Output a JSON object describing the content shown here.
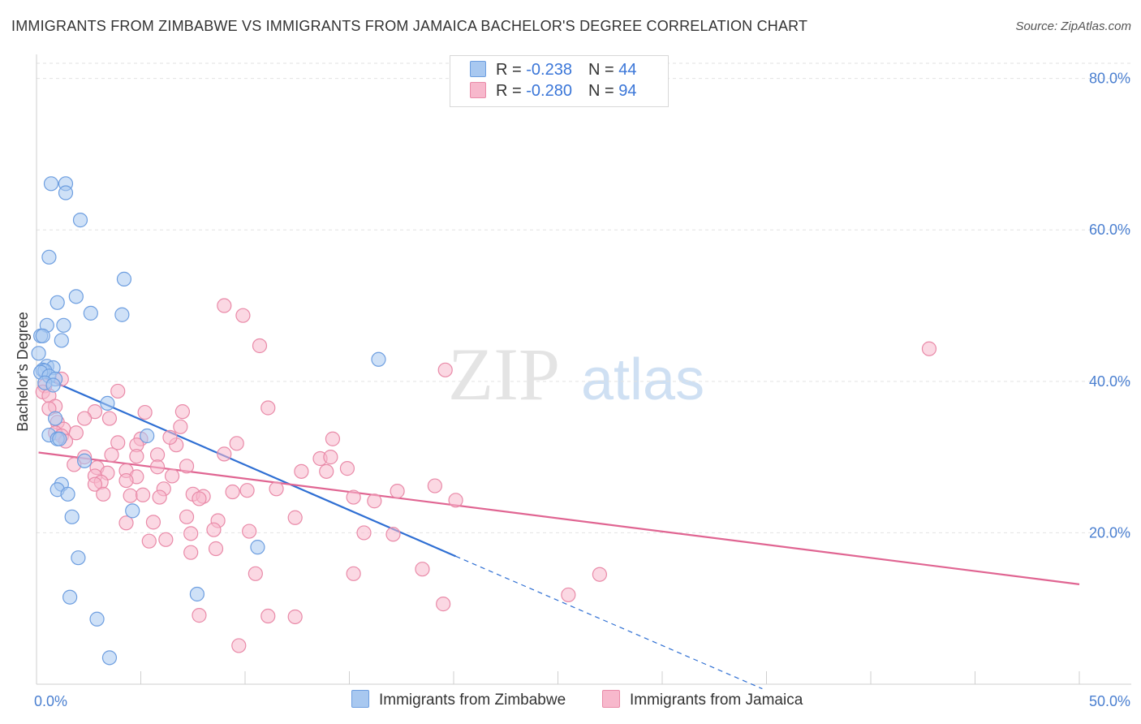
{
  "title": "IMMIGRANTS FROM ZIMBABWE VS IMMIGRANTS FROM JAMAICA BACHELOR'S DEGREE CORRELATION CHART",
  "source": "Source: ZipAtlas.com",
  "watermark": {
    "zip": "ZIP",
    "atlas": "atlas"
  },
  "legend": {
    "rows": [
      {
        "r_label": "R = ",
        "r_value": "-0.238",
        "n_label": "N = ",
        "n_value": "44",
        "color": "#a8c8f0"
      },
      {
        "r_label": "R = ",
        "r_value": "-0.280",
        "n_label": "N = ",
        "n_value": "94",
        "color": "#f7b8cc"
      }
    ]
  },
  "bottom_legend": {
    "zimbabwe": "Immigrants from Zimbabwe",
    "jamaica": "Immigrants from Jamaica"
  },
  "colors": {
    "zimbabwe_fill": "#a8c8f0",
    "zimbabwe_stroke": "#6d9ee0",
    "zimbabwe_line": "#2f6fd3",
    "jamaica_fill": "#f7b8cc",
    "jamaica_stroke": "#e98aa8",
    "jamaica_line": "#e06592"
  },
  "chart_data": {
    "type": "scatter",
    "ylabel": "Bachelor's Degree",
    "xlim": [
      0,
      50
    ],
    "ylim": [
      0,
      82
    ],
    "x_tick_labels": [
      {
        "x": 0,
        "label": "0.0%"
      },
      {
        "x": 50,
        "label": "50.0%"
      }
    ],
    "y_ticks": [
      {
        "y": 20,
        "label": "20.0%"
      },
      {
        "y": 40,
        "label": "40.0%"
      },
      {
        "y": 60,
        "label": "60.0%"
      },
      {
        "y": 80,
        "label": "80.0%"
      }
    ],
    "x_minor_ticks": [
      5,
      10,
      15,
      20,
      25,
      30,
      35,
      40,
      45,
      50
    ],
    "grid": true,
    "series": [
      {
        "name": "Immigrants from Zimbabwe",
        "points": [
          [
            0.7,
            66.1
          ],
          [
            1.4,
            66.1
          ],
          [
            1.4,
            64.9
          ],
          [
            2.1,
            61.3
          ],
          [
            0.6,
            56.4
          ],
          [
            4.2,
            53.5
          ],
          [
            1.9,
            51.2
          ],
          [
            1.0,
            50.4
          ],
          [
            2.6,
            49.0
          ],
          [
            4.1,
            48.8
          ],
          [
            0.5,
            47.4
          ],
          [
            1.3,
            47.4
          ],
          [
            0.2,
            46.0
          ],
          [
            0.3,
            46.0
          ],
          [
            1.2,
            45.4
          ],
          [
            0.1,
            43.7
          ],
          [
            16.4,
            42.9
          ],
          [
            0.5,
            42.0
          ],
          [
            0.8,
            41.8
          ],
          [
            0.3,
            41.5
          ],
          [
            0.4,
            41.4
          ],
          [
            0.2,
            41.2
          ],
          [
            0.6,
            40.7
          ],
          [
            0.9,
            40.3
          ],
          [
            0.4,
            39.8
          ],
          [
            0.8,
            39.5
          ],
          [
            3.4,
            37.1
          ],
          [
            0.9,
            35.1
          ],
          [
            0.6,
            32.9
          ],
          [
            1.0,
            32.4
          ],
          [
            1.1,
            32.4
          ],
          [
            5.3,
            32.8
          ],
          [
            2.3,
            29.5
          ],
          [
            1.2,
            26.4
          ],
          [
            1.0,
            25.7
          ],
          [
            1.5,
            25.1
          ],
          [
            4.6,
            22.9
          ],
          [
            1.7,
            22.1
          ],
          [
            10.6,
            18.1
          ],
          [
            2.0,
            16.7
          ],
          [
            7.7,
            11.9
          ],
          [
            1.6,
            11.5
          ],
          [
            2.9,
            8.6
          ],
          [
            3.5,
            3.5
          ]
        ],
        "trend": {
          "x": [
            0.1,
            20.1
          ],
          "y": [
            40.8,
            16.9
          ]
        },
        "trend_dashed": {
          "x": [
            20.1,
            34.8
          ],
          "y": [
            16.9,
            -0.6
          ]
        }
      },
      {
        "name": "Immigrants from Jamaica",
        "points": [
          [
            9.0,
            50.0
          ],
          [
            9.9,
            48.7
          ],
          [
            42.8,
            44.3
          ],
          [
            10.7,
            44.7
          ],
          [
            19.6,
            41.5
          ],
          [
            1.2,
            40.3
          ],
          [
            0.4,
            39.4
          ],
          [
            0.3,
            38.6
          ],
          [
            0.6,
            38.1
          ],
          [
            3.9,
            38.7
          ],
          [
            0.9,
            36.7
          ],
          [
            2.8,
            36.0
          ],
          [
            0.6,
            36.4
          ],
          [
            5.2,
            35.9
          ],
          [
            11.1,
            36.5
          ],
          [
            3.5,
            35.1
          ],
          [
            2.3,
            35.1
          ],
          [
            1.0,
            34.6
          ],
          [
            6.9,
            34.0
          ],
          [
            1.3,
            33.7
          ],
          [
            1.9,
            33.2
          ],
          [
            0.9,
            33.2
          ],
          [
            1.2,
            32.8
          ],
          [
            5.0,
            32.4
          ],
          [
            3.9,
            31.9
          ],
          [
            14.2,
            32.4
          ],
          [
            1.4,
            32.1
          ],
          [
            9.6,
            31.8
          ],
          [
            6.7,
            31.6
          ],
          [
            4.8,
            31.6
          ],
          [
            3.6,
            30.3
          ],
          [
            4.8,
            30.1
          ],
          [
            2.3,
            30.0
          ],
          [
            5.8,
            30.3
          ],
          [
            13.6,
            29.8
          ],
          [
            14.1,
            30.0
          ],
          [
            9.0,
            30.4
          ],
          [
            1.8,
            29.0
          ],
          [
            2.9,
            28.6
          ],
          [
            5.8,
            28.7
          ],
          [
            4.3,
            28.2
          ],
          [
            7.2,
            28.8
          ],
          [
            13.9,
            28.1
          ],
          [
            12.7,
            28.1
          ],
          [
            14.9,
            28.5
          ],
          [
            3.4,
            27.9
          ],
          [
            2.8,
            27.5
          ],
          [
            6.5,
            27.5
          ],
          [
            4.8,
            27.4
          ],
          [
            4.3,
            26.9
          ],
          [
            3.1,
            26.7
          ],
          [
            2.8,
            26.4
          ],
          [
            19.1,
            26.2
          ],
          [
            11.5,
            25.8
          ],
          [
            6.1,
            25.8
          ],
          [
            10.1,
            25.6
          ],
          [
            17.3,
            25.5
          ],
          [
            9.4,
            25.4
          ],
          [
            3.2,
            25.1
          ],
          [
            7.5,
            25.1
          ],
          [
            8.0,
            24.8
          ],
          [
            4.5,
            24.9
          ],
          [
            15.2,
            24.7
          ],
          [
            7.8,
            24.5
          ],
          [
            20.1,
            24.3
          ],
          [
            16.2,
            24.2
          ],
          [
            5.9,
            24.7
          ],
          [
            12.4,
            22.0
          ],
          [
            7.2,
            22.1
          ],
          [
            8.7,
            21.6
          ],
          [
            4.3,
            21.3
          ],
          [
            5.6,
            21.4
          ],
          [
            8.5,
            20.4
          ],
          [
            10.2,
            20.2
          ],
          [
            7.4,
            19.9
          ],
          [
            15.7,
            20.0
          ],
          [
            17.1,
            19.8
          ],
          [
            6.2,
            19.1
          ],
          [
            5.4,
            18.9
          ],
          [
            8.6,
            17.9
          ],
          [
            7.4,
            17.4
          ],
          [
            18.5,
            15.2
          ],
          [
            10.5,
            14.6
          ],
          [
            15.2,
            14.6
          ],
          [
            27.0,
            14.5
          ],
          [
            25.5,
            11.8
          ],
          [
            19.5,
            10.6
          ],
          [
            7.8,
            9.1
          ],
          [
            11.1,
            9.0
          ],
          [
            12.4,
            8.9
          ],
          [
            9.7,
            5.1
          ],
          [
            7.0,
            36.0
          ],
          [
            6.4,
            32.6
          ],
          [
            5.1,
            25.0
          ]
        ],
        "trend": {
          "x": [
            0.1,
            50
          ],
          "y": [
            30.6,
            13.2
          ]
        }
      }
    ]
  }
}
